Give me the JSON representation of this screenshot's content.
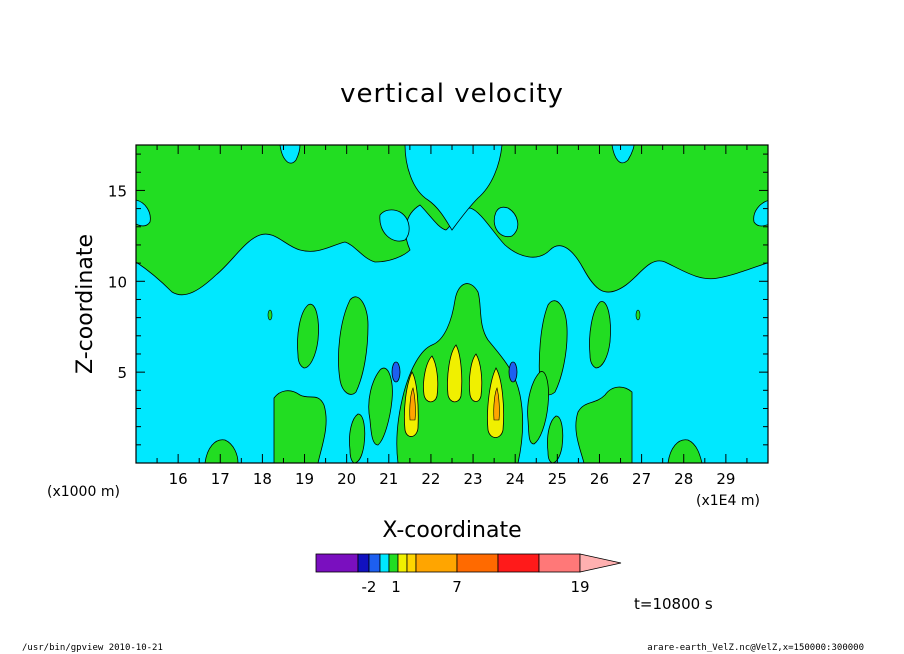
{
  "chart_data": {
    "type": "heatmap",
    "title": "vertical velocity",
    "xlabel": "X-coordinate",
    "ylabel": "Z-coordinate",
    "x_unit_label": "(x1E4 m)",
    "y_unit_label": "(x1000 m)",
    "xlim": [
      15.0,
      30.0
    ],
    "ylim": [
      0.0,
      17.5
    ],
    "x_ticks": [
      "16",
      "17",
      "18",
      "19",
      "20",
      "21",
      "22",
      "23",
      "24",
      "25",
      "26",
      "27",
      "28",
      "29"
    ],
    "y_ticks": [
      "5",
      "10",
      "15"
    ],
    "grid": false,
    "time_label": "t=10800 s",
    "colorbar": {
      "labels": [
        "-2",
        "1",
        "7",
        "19"
      ],
      "levels": [
        -4,
        -2,
        -1,
        0,
        0.5,
        1,
        1.5,
        4,
        7,
        10,
        13,
        19
      ],
      "colors": [
        "#7a0fbf",
        "#1111c0",
        "#1d5ff0",
        "#00e8ff",
        "#22dd22",
        "#f0f000",
        "#ffd500",
        "#ffa500",
        "#ff6a00",
        "#ff1a1a",
        "#ff7878",
        "#ffb0b0"
      ]
    },
    "field_regions": [
      {
        "level": "positive",
        "color": "#22dd22",
        "description": "green upper layer"
      },
      {
        "level": "near-zero",
        "color": "#00e8ff",
        "description": "cyan background"
      },
      {
        "level": "strong-updraft",
        "color": "#f0f000",
        "x": [
          21.5,
          22.5,
          23.0,
          23.6
        ],
        "z_range": [
          1.5,
          6.5
        ]
      },
      {
        "level": "downdraft",
        "color": "#1d5ff0",
        "x": [
          21.1,
          23.95
        ],
        "z": 5.5
      }
    ]
  },
  "footer": {
    "program": "/usr/bin/gpview   2010-10-21",
    "source": "arare-earth_VelZ.nc@VelZ,x=150000:300000"
  }
}
